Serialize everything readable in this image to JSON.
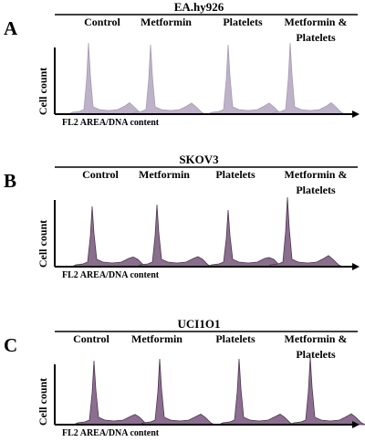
{
  "panels": [
    {
      "letter": "A",
      "title": "EA.hy926",
      "conditions": [
        [
          "Control"
        ],
        [
          "Metformin"
        ],
        [
          "Platelets"
        ],
        [
          "Metformin &",
          "Platelets"
        ]
      ],
      "y_label": "Cell count",
      "x_label": "FL2 AREA/DNA content"
    },
    {
      "letter": "B",
      "title": "SKOV3",
      "conditions": [
        [
          "Control"
        ],
        [
          "Metformin"
        ],
        [
          "Platelets"
        ],
        [
          "Metformin &",
          "Platelets"
        ]
      ],
      "y_label": "Cell count",
      "x_label": "FL2 AREA/DNA content"
    },
    {
      "letter": "C",
      "title": "UCI1O1",
      "conditions": [
        [
          "Control"
        ],
        [
          "Metformin"
        ],
        [
          "Platelets"
        ],
        [
          "Metformin &",
          "Platelets"
        ]
      ],
      "y_label": "Cell count",
      "x_label": "FL2 AREA/DNA content"
    }
  ]
}
